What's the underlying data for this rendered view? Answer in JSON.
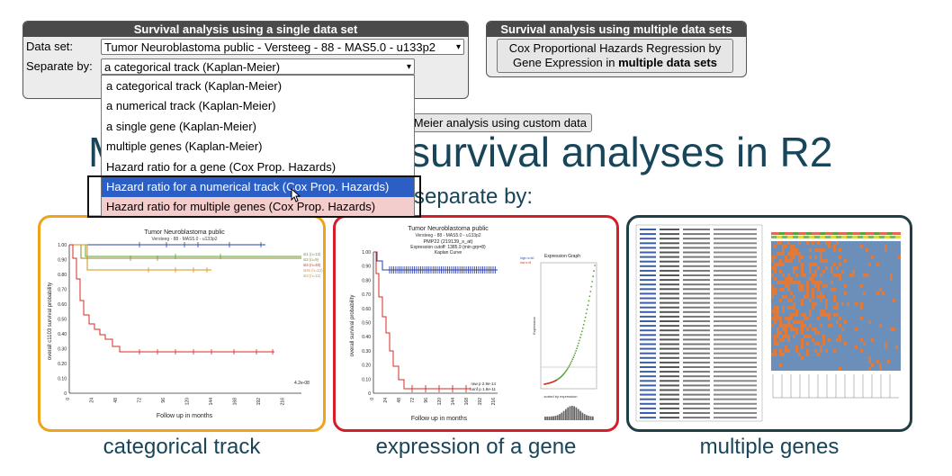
{
  "single_panel": {
    "title": "Survival analysis using a single data set",
    "dataset_label": "Data set:",
    "dataset_value": "Tumor Neuroblastoma public - Versteeg - 88 - MAS5.0 - u133p2",
    "separate_label": "Separate by:",
    "separate_value": "a categorical track (Kaplan-Meier)"
  },
  "multi_panel": {
    "title": "Survival analysis using multiple data sets",
    "button_line1": "Cox Proportional Hazards Regression by",
    "button_line2_prefix": "Gene Expression in ",
    "button_line2_bold": "multiple data sets"
  },
  "custom_button_partial": "Meier analysis using custom data",
  "dropdown": {
    "options": [
      "a categorical track (Kaplan-Meier)",
      "a numerical track (Kaplan-Meier)",
      "a single gene (Kaplan-Meier)",
      "multiple genes (Kaplan-Meier)",
      "Hazard ratio for a gene (Cox Prop. Hazards)",
      "Hazard ratio for a numerical track (Cox Prop. Hazards)",
      "Hazard ratio for multiple genes (Cox Prop. Hazards)"
    ],
    "selected_index": 5
  },
  "heading_left": "M",
  "heading_right": "survival analyses in R2",
  "subheading": "separate by:",
  "cards": [
    {
      "caption": "categorical track",
      "border": "#f0a21b"
    },
    {
      "caption": "expression of a gene",
      "border": "#d41f2b"
    },
    {
      "caption": "multiple genes",
      "border": "#1f3f46"
    }
  ],
  "km1": {
    "title": "Tumor Neuroblastoma public",
    "subtitle": "Versteeg - 88 - MAS5.0 - u133p2",
    "ylabel": "overall c1103 survival probability",
    "xlabel": "Follow up in months",
    "yticks": [
      "1.00",
      "0.90",
      "0.80",
      "0.70",
      "0.60",
      "0.50",
      "0.40",
      "0.30",
      "0.20",
      "0.10",
      "0"
    ],
    "xticks": [
      "0",
      "24",
      "48",
      "72",
      "96",
      "120",
      "144",
      "168",
      "192",
      "216"
    ],
    "legend": [
      "st1 (n=13)",
      "st2 (n=9)",
      "st4 (n=40)",
      "st4s (n=12)",
      "st3 (n=12)"
    ],
    "pval": "4.2e-08"
  },
  "km2": {
    "title": "Tumor Neuroblastoma public",
    "line2": "Versteeg - 88 - MAS5.0 - u133p2",
    "line3": "PMP22 (219139_s_at)",
    "line4": "Expression cutoff: 1385.9 (min grp=8)",
    "line5": "Kaplan Curve",
    "ylabel": "overall survival probability",
    "xlabel": "Follow up in months",
    "yticks": [
      "1.00",
      "0.90",
      "0.80",
      "0.70",
      "0.60",
      "0.50",
      "0.40",
      "0.30",
      "0.20",
      "0.10",
      "0"
    ],
    "xticks": [
      "0",
      "24",
      "48",
      "72",
      "96",
      "120",
      "144",
      "168",
      "192",
      "216"
    ],
    "legend_high": "high n=40",
    "legend_low": "low n=8",
    "pval": "raw p 2.9e-14",
    "bonf": "bonf p 1.8e-11",
    "expr_title": "Expression Graph",
    "expr_ylabel": "Expression",
    "expr_bottom": "sorted by expression"
  },
  "colors": {
    "accent_text": "#18455a",
    "km_red": "#d62b1f",
    "km_blue": "#2d3fa8",
    "km_green": "#5aa03b",
    "km_orange": "#d9921b",
    "heat_blue": "#6b8fb8",
    "heat_orange": "#e07a3a"
  }
}
